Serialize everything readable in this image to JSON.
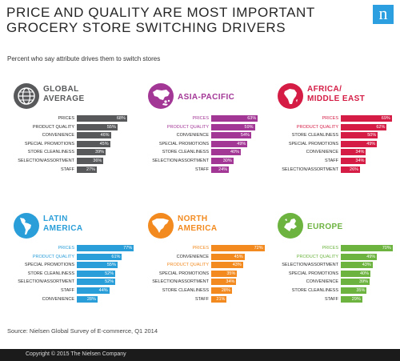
{
  "title_line1": "PRICE AND QUALITY ARE MOST IMPORTANT",
  "title_line2": "GROCERY STORE SWITCHING DRIVERS",
  "logo_text": "n",
  "subtitle": "Percent who say attribute drives them to switch stores",
  "source": "Source: Nielsen Global Survey of E-commerce, Q1 2014",
  "copyright": "Copyright © 2015 The Nielsen Company",
  "colors": {
    "title": "#262626",
    "logo": "#2c9fe0",
    "footer": "#1b1b1b"
  },
  "chart_data": [
    {
      "type": "bar",
      "orientation": "horizontal",
      "region_line1": "GLOBAL",
      "region_line2": "AVERAGE",
      "icon": "globe-icon",
      "color": "#57595b",
      "highlight_color": "#57595b",
      "categories": [
        "PRICES",
        "PRODUCT QUALITY",
        "CONVENIENCE",
        "SPECIAL PROMOTIONS",
        "STORE CLEANLINESS",
        "SELECTION/ASSORTMENT",
        "STAFF"
      ],
      "values": [
        68,
        55,
        46,
        45,
        39,
        36,
        27
      ],
      "value_labels": [
        "68%",
        "55%",
        "46%",
        "45%",
        "39%",
        "36%",
        "27%"
      ],
      "highlight_count": 0
    },
    {
      "type": "bar",
      "orientation": "horizontal",
      "region_line1": "ASIA-PACIFIC",
      "region_line2": "",
      "icon": "asia-map-icon",
      "color": "#a33796",
      "highlight_color": "#a33796",
      "categories": [
        "PRICES",
        "PRODUCT QUALITY",
        "CONVENIENCE",
        "SPECIAL PROMOTIONS",
        "STORE CLEANLINESS",
        "SELECTION/ASSORTMENT",
        "STAFF"
      ],
      "values": [
        63,
        59,
        54,
        49,
        40,
        30,
        24
      ],
      "value_labels": [
        "63%",
        "59%",
        "54%",
        "49%",
        "40%",
        "30%",
        "24%"
      ],
      "highlight_count": 2
    },
    {
      "type": "bar",
      "orientation": "horizontal",
      "region_line1": "AFRICA/",
      "region_line2": "MIDDLE EAST",
      "icon": "africa-map-icon",
      "color": "#d41c45",
      "highlight_color": "#d41c45",
      "categories": [
        "PRICES",
        "PRODUCT QUALITY",
        "STORE CLEANLINESS",
        "SPECIAL PROMOTIONS",
        "CONVENIENCE",
        "STAFF",
        "SELECTION/ASSORTMENT"
      ],
      "values": [
        69,
        62,
        50,
        49,
        34,
        34,
        26
      ],
      "value_labels": [
        "69%",
        "62%",
        "50%",
        "49%",
        "34%",
        "34%",
        "26%"
      ],
      "highlight_count": 2
    },
    {
      "type": "bar",
      "orientation": "horizontal",
      "region_line1": "LATIN",
      "region_line2": "AMERICA",
      "icon": "latin-america-map-icon",
      "color": "#2a9ed8",
      "highlight_color": "#2a9ed8",
      "categories": [
        "PRICES",
        "PRODUCT QUALITY",
        "SPECIAL PROMOTIONS",
        "STORE CLEANLINESS",
        "SELECTION/ASSORTMENT",
        "STAFF",
        "CONVENIENCE"
      ],
      "values": [
        77,
        61,
        55,
        52,
        52,
        44,
        28
      ],
      "value_labels": [
        "77%",
        "61%",
        "55%",
        "52%",
        "52%",
        "44%",
        "28%"
      ],
      "highlight_count": 2
    },
    {
      "type": "bar",
      "orientation": "horizontal",
      "region_line1": "NORTH",
      "region_line2": "AMERICA",
      "icon": "north-america-map-icon",
      "color": "#f28a1f",
      "highlight_color": "#f28a1f",
      "categories": [
        "PRICES",
        "CONVENIENCE",
        "PRODUCT QUALITY",
        "SPECIAL PROMOTIONS",
        "SELECTION/ASSORTMENT",
        "STORE CLEANLINESS",
        "STAFF"
      ],
      "values": [
        72,
        45,
        43,
        35,
        34,
        28,
        21
      ],
      "value_labels": [
        "72%",
        "45%",
        "43%",
        "35%",
        "34%",
        "28%",
        "21%"
      ],
      "highlight_count": 1,
      "extra_highlight_index": 2
    },
    {
      "type": "bar",
      "orientation": "horizontal",
      "region_line1": "EUROPE",
      "region_line2": "",
      "icon": "europe-map-icon",
      "color": "#6cb33f",
      "highlight_color": "#6cb33f",
      "categories": [
        "PRICES",
        "PRODUCT QUALITY",
        "SELECTION/ASSORTMENT",
        "SPECIAL PROMOTIONS",
        "CONVENIENCE",
        "STORE CLEANLINESS",
        "STAFF"
      ],
      "values": [
        70,
        49,
        43,
        40,
        39,
        35,
        29
      ],
      "value_labels": [
        "70%",
        "49%",
        "43%",
        "40%",
        "39%",
        "35%",
        "29%"
      ],
      "highlight_count": 2
    }
  ]
}
